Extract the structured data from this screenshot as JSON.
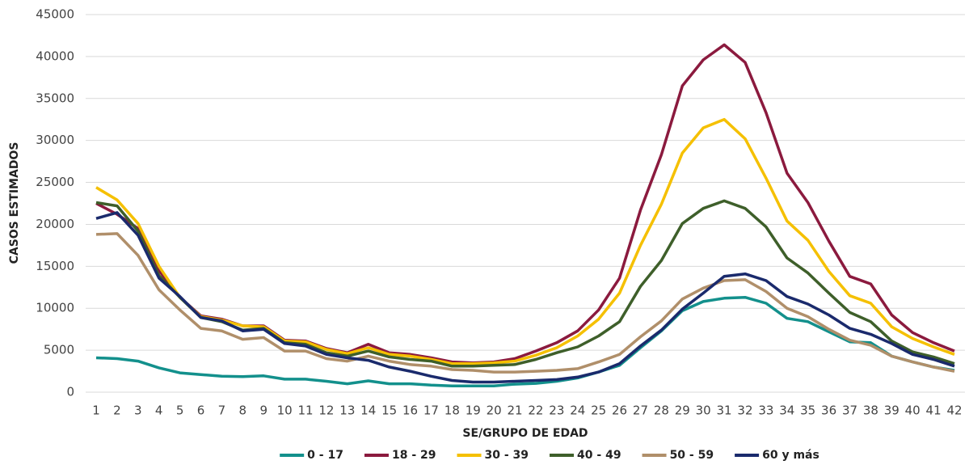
{
  "chart_data": {
    "type": "line",
    "y_label": "CASOS ESTIMADOS",
    "x_label": "SE/GRUPO DE EDAD",
    "categories": [
      "1",
      "2",
      "3",
      "4",
      "5",
      "6",
      "7",
      "8",
      "9",
      "10",
      "11",
      "12",
      "13",
      "14",
      "15",
      "16",
      "17",
      "18",
      "19",
      "20",
      "21",
      "22",
      "23",
      "24",
      "25",
      "26",
      "27",
      "28",
      "29",
      "30",
      "31",
      "32",
      "33",
      "34",
      "35",
      "36",
      "37",
      "38",
      "39",
      "40",
      "41",
      "42"
    ],
    "ylim": [
      0,
      45000
    ],
    "yticks": [
      0,
      5000,
      10000,
      15000,
      20000,
      25000,
      30000,
      35000,
      40000,
      45000
    ],
    "grid": true,
    "legend": "bottom",
    "series": [
      {
        "name": "0 - 17",
        "color": "#13908c",
        "values": [
          4100,
          4000,
          3700,
          2900,
          2300,
          2100,
          1900,
          1850,
          1950,
          1550,
          1550,
          1300,
          1000,
          1350,
          1000,
          1000,
          850,
          750,
          750,
          750,
          950,
          1050,
          1300,
          1700,
          2400,
          3200,
          5300,
          7300,
          9700,
          10800,
          11200,
          11300,
          10600,
          8800,
          8400,
          7200,
          6000,
          5900,
          4300,
          3600,
          3000,
          2600
        ]
      },
      {
        "name": "18 - 29",
        "color": "#8b1a3e",
        "values": [
          22500,
          21200,
          19500,
          14500,
          11300,
          9100,
          8700,
          7900,
          7900,
          6200,
          6100,
          5200,
          4700,
          5700,
          4700,
          4500,
          4100,
          3600,
          3500,
          3600,
          4000,
          4900,
          5900,
          7300,
          9800,
          13600,
          21700,
          28300,
          36500,
          39600,
          41400,
          39300,
          33300,
          26100,
          22600,
          18000,
          13800,
          12900,
          9200,
          7100,
          5900,
          4900
        ]
      },
      {
        "name": "30 - 39",
        "color": "#f5c000",
        "values": [
          24400,
          22900,
          20100,
          15000,
          11300,
          9000,
          8600,
          7900,
          7800,
          6100,
          6000,
          5100,
          4600,
          5300,
          4500,
          4300,
          3900,
          3400,
          3400,
          3500,
          3700,
          4400,
          5300,
          6700,
          8700,
          11800,
          17500,
          22400,
          28500,
          31500,
          32500,
          30200,
          25500,
          20400,
          18100,
          14400,
          11500,
          10600,
          7800,
          6400,
          5400,
          4500
        ]
      },
      {
        "name": "40 - 49",
        "color": "#3e5f2a",
        "values": [
          22600,
          22200,
          19200,
          13900,
          11300,
          8900,
          8400,
          7400,
          7600,
          5900,
          5700,
          4700,
          4300,
          4900,
          4200,
          3900,
          3700,
          3100,
          3100,
          3200,
          3300,
          3900,
          4700,
          5400,
          6700,
          8400,
          12600,
          15700,
          20100,
          21900,
          22800,
          21900,
          19700,
          16000,
          14200,
          11800,
          9500,
          8400,
          6100,
          4800,
          4200,
          3400
        ]
      },
      {
        "name": "50 - 59",
        "color": "#b08f6a",
        "values": [
          18800,
          18900,
          16300,
          12200,
          9800,
          7600,
          7300,
          6300,
          6500,
          4900,
          4900,
          4000,
          3700,
          4300,
          3700,
          3300,
          3100,
          2700,
          2600,
          2400,
          2400,
          2500,
          2600,
          2800,
          3600,
          4500,
          6600,
          8500,
          11100,
          12400,
          13300,
          13400,
          12000,
          10000,
          9000,
          7500,
          6200,
          5600,
          4300,
          3600,
          3000,
          2500
        ]
      },
      {
        "name": "60 y más",
        "color": "#1a2a6c",
        "values": [
          20700,
          21400,
          18700,
          13600,
          11400,
          8900,
          8500,
          7300,
          7500,
          5800,
          5500,
          4500,
          4100,
          3800,
          3000,
          2500,
          1900,
          1400,
          1200,
          1200,
          1300,
          1400,
          1500,
          1800,
          2400,
          3400,
          5500,
          7400,
          9900,
          11800,
          13800,
          14100,
          13300,
          11400,
          10500,
          9200,
          7600,
          6900,
          5800,
          4500,
          3900,
          3100
        ]
      }
    ]
  }
}
